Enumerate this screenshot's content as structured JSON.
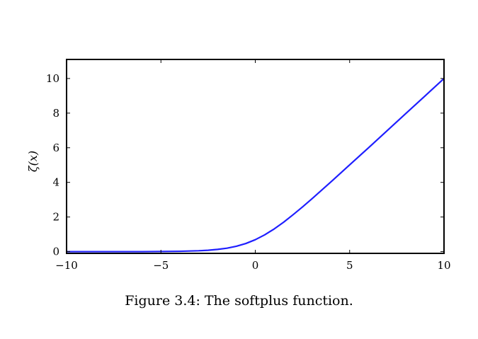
{
  "chart_data": {
    "type": "line",
    "title": "",
    "xlabel": "",
    "ylabel": "ζ(x)",
    "xlim": [
      -10,
      10
    ],
    "ylim": [
      -0.1,
      11.1
    ],
    "xticks": [
      -10,
      -5,
      0,
      5,
      10
    ],
    "xtick_labels": [
      "−10",
      "−5",
      "0",
      "5",
      "10"
    ],
    "yticks": [
      0,
      2,
      4,
      6,
      8,
      10
    ],
    "ytick_labels": [
      "0",
      "2",
      "4",
      "6",
      "8",
      "10"
    ],
    "grid": false,
    "legend": "none",
    "series": [
      {
        "color": "#1f1fff",
        "x": [
          -10,
          -9,
          -8,
          -7,
          -6,
          -5,
          -4,
          -3,
          -2.5,
          -2,
          -1.5,
          -1,
          -0.5,
          0,
          0.5,
          1,
          1.5,
          2,
          2.5,
          3,
          4,
          5,
          6,
          7,
          8,
          9,
          10
        ],
        "y": [
          0.0,
          0.0,
          0.0,
          0.0,
          0.0,
          0.01,
          0.02,
          0.05,
          0.08,
          0.13,
          0.2,
          0.31,
          0.47,
          0.69,
          0.97,
          1.31,
          1.7,
          2.13,
          2.58,
          3.05,
          4.02,
          5.01,
          6.0,
          7.0,
          8.0,
          9.0,
          10.0
        ]
      }
    ]
  },
  "caption": "Figure 3.4: The softplus function."
}
